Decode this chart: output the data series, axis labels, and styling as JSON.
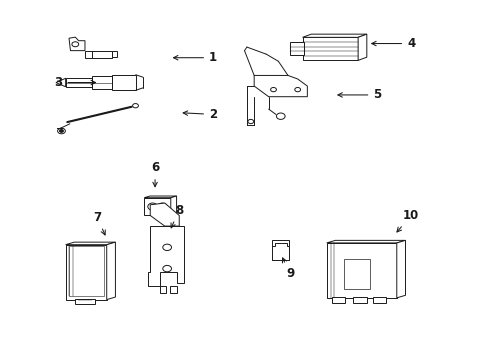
{
  "background_color": "#ffffff",
  "line_color": "#1a1a1a",
  "fig_width": 4.89,
  "fig_height": 3.6,
  "dpi": 100,
  "label_pairs": [
    [
      1,
      0.435,
      0.845,
      0.345,
      0.845
    ],
    [
      2,
      0.435,
      0.685,
      0.365,
      0.69
    ],
    [
      3,
      0.115,
      0.775,
      0.2,
      0.775
    ],
    [
      4,
      0.845,
      0.885,
      0.755,
      0.885
    ],
    [
      5,
      0.775,
      0.74,
      0.685,
      0.74
    ],
    [
      6,
      0.315,
      0.535,
      0.315,
      0.47
    ],
    [
      7,
      0.195,
      0.395,
      0.215,
      0.335
    ],
    [
      8,
      0.365,
      0.415,
      0.345,
      0.355
    ],
    [
      9,
      0.595,
      0.235,
      0.575,
      0.29
    ],
    [
      10,
      0.845,
      0.4,
      0.81,
      0.345
    ]
  ]
}
